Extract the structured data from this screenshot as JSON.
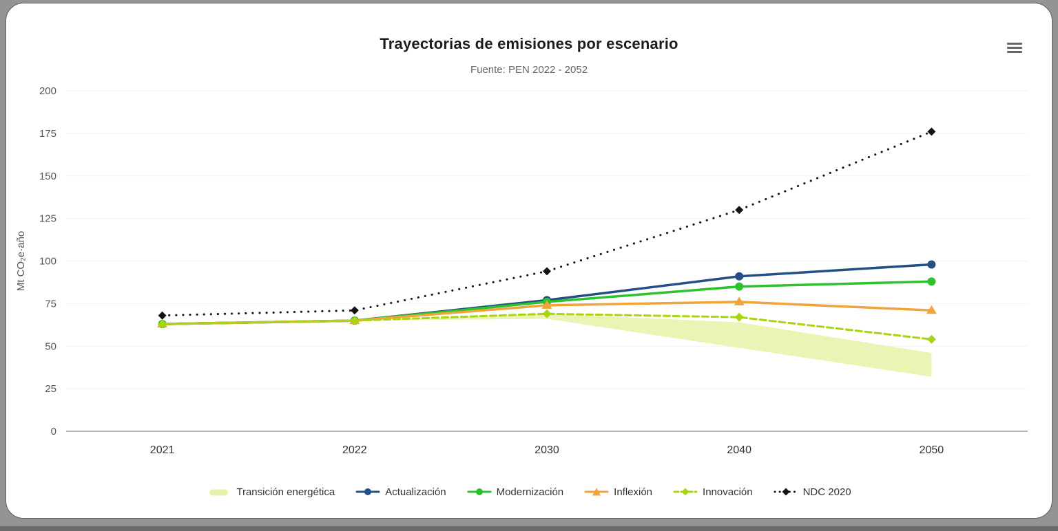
{
  "window": {
    "background_color": "#949494",
    "card_color": "#ffffff"
  },
  "toolbar": {
    "context_menu_icon": "hamburger-menu"
  },
  "chart_data": {
    "type": "line",
    "title": "Trayectorias de emisiones por escenario",
    "subtitle": "Fuente: PEN 2022 - 2052",
    "xlabel": "",
    "ylabel": "Mt CO₂e·año",
    "categories": [
      "2021",
      "2022",
      "2030",
      "2040",
      "2050"
    ],
    "ylim": [
      0,
      200
    ],
    "ytick_step": 25,
    "yticks": [
      0,
      25,
      50,
      75,
      100,
      125,
      150,
      175,
      200
    ],
    "grid": true,
    "legend_position": "bottom",
    "series": [
      {
        "name": "Transición energética",
        "type": "arearange",
        "low": [
          63,
          65,
          66,
          49,
          32
        ],
        "high": [
          63,
          65,
          69,
          64,
          46
        ],
        "color": "#e6f1a3",
        "opacity": 0.8
      },
      {
        "name": "Actualización",
        "type": "line",
        "values": [
          63,
          65,
          77,
          91,
          98
        ],
        "color": "#234f85",
        "marker": "circle",
        "dash": "solid"
      },
      {
        "name": "Modernización",
        "type": "line",
        "values": [
          63,
          65,
          76,
          85,
          88
        ],
        "color": "#2cc32c",
        "marker": "circle",
        "dash": "solid"
      },
      {
        "name": "Inflexión",
        "type": "line",
        "values": [
          63,
          65,
          74,
          76,
          71
        ],
        "color": "#f0a43a",
        "marker": "triangle",
        "dash": "solid"
      },
      {
        "name": "Innovación",
        "type": "line",
        "values": [
          63,
          65,
          69,
          67,
          54
        ],
        "color": "#a8d614",
        "marker": "diamond",
        "dash": "dashed"
      },
      {
        "name": "NDC 2020",
        "type": "line",
        "values": [
          68,
          71,
          94,
          130,
          176
        ],
        "color": "#141414",
        "marker": "diamond",
        "dash": "dotted"
      }
    ],
    "axis_text_color": "#555555",
    "xaxis_text_color": "#333333",
    "gridline_color": "#f2f2f2",
    "axisline_color": "#9a9a9a"
  }
}
